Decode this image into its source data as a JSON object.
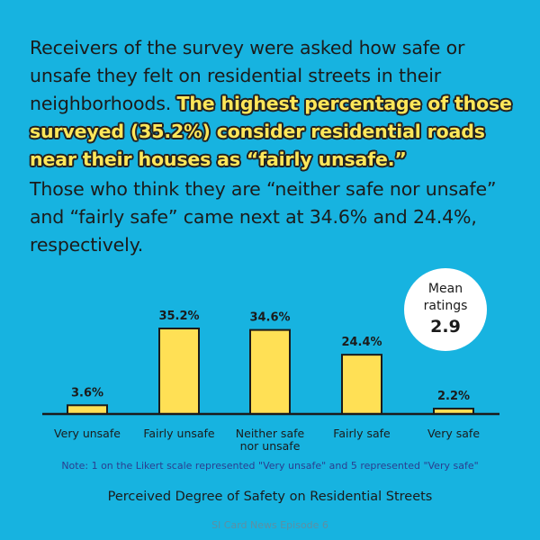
{
  "intro": {
    "part1": "Receivers of the survey were asked how safe or unsafe they felt on residential streets in their neighborhoods.",
    "highlight": "The highest percentage of those surveyed (35.2%) consider residential roads near their houses as “fairly unsafe.”",
    "part2": "Those who think they are “neither safe nor unsafe” and “fairly safe” came next at 34.6% and 24.4%, respectively."
  },
  "badge": {
    "label_line1": "Mean",
    "label_line2": "ratings",
    "value": "2.9"
  },
  "chart_data": {
    "type": "bar",
    "title": "Perceived Degree of Safety on Residential Streets",
    "categories": [
      [
        "Very unsafe"
      ],
      [
        "Fairly unsafe"
      ],
      [
        "Neither safe",
        "nor unsafe"
      ],
      [
        "Fairly safe"
      ],
      [
        "Very safe"
      ]
    ],
    "values": [
      3.6,
      35.2,
      34.6,
      24.4,
      2.2
    ],
    "value_labels": [
      "3.6%",
      "35.2%",
      "34.6%",
      "24.4%",
      "2.2%"
    ],
    "xlabel": "",
    "ylabel": "",
    "grid": false,
    "legend": "none",
    "bar_color": "#ffe055"
  },
  "note": "Note: 1 on the Likert scale represented \"Very unsafe\" and 5 represented \"Very safe\"",
  "footer": "SI Card News Episode 6",
  "colors": {
    "background": "#17b3e0",
    "highlight": "#ffe75a",
    "note": "#2b3e8f",
    "bar": "#ffe055"
  }
}
